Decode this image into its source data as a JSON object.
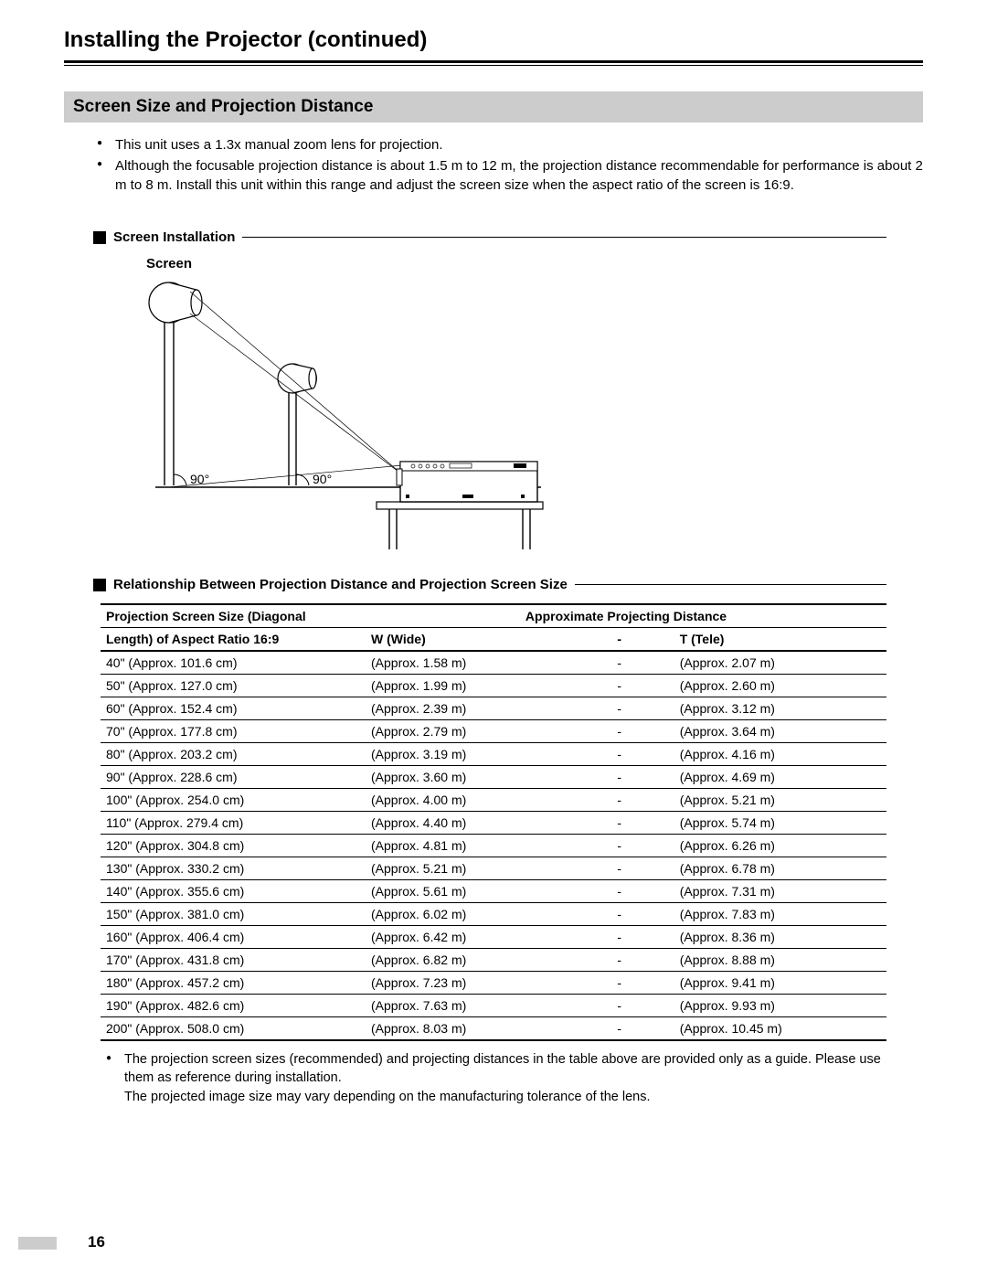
{
  "page": {
    "title": "Installing the Projector (continued)",
    "number": "16"
  },
  "section": {
    "heading": "Screen Size and Projection Distance",
    "bullets": [
      "This unit uses a 1.3x manual zoom lens for projection.",
      "Although the focusable projection distance is about 1.5 m to 12 m, the projection distance recommendable for performance is about 2 m to 8 m. Install this unit within this range and adjust the screen size when the aspect ratio of the screen is 16:9."
    ]
  },
  "diagram": {
    "subheading": "Screen Installation",
    "screen_label": "Screen",
    "angle_left": "90°",
    "angle_right": "90°",
    "line_color": "#000000",
    "fill_color": "#ffffff"
  },
  "table_section": {
    "subheading": "Relationship Between Projection Distance and Projection Screen Size",
    "header_size_l1": "Projection Screen Size (Diagonal",
    "header_size_l2": "Length) of Aspect Ratio 16:9",
    "header_approx": "Approximate Projecting Distance",
    "header_wide": "W (Wide)",
    "header_dash": "-",
    "header_tele": "T (Tele)",
    "rows": [
      {
        "size": "40\" (Approx. 101.6 cm)",
        "wide": "(Approx. 1.58 m)",
        "tele": "(Approx. 2.07 m)"
      },
      {
        "size": "50\" (Approx. 127.0 cm)",
        "wide": "(Approx. 1.99 m)",
        "tele": "(Approx. 2.60 m)"
      },
      {
        "size": "60\" (Approx. 152.4 cm)",
        "wide": "(Approx. 2.39 m)",
        "tele": "(Approx. 3.12 m)"
      },
      {
        "size": "70\" (Approx. 177.8 cm)",
        "wide": "(Approx. 2.79 m)",
        "tele": "(Approx. 3.64 m)"
      },
      {
        "size": "80\" (Approx. 203.2 cm)",
        "wide": "(Approx. 3.19 m)",
        "tele": "(Approx. 4.16 m)"
      },
      {
        "size": "90\" (Approx. 228.6 cm)",
        "wide": "(Approx. 3.60 m)",
        "tele": "(Approx. 4.69 m)"
      },
      {
        "size": "100\" (Approx. 254.0 cm)",
        "wide": "(Approx. 4.00 m)",
        "tele": "(Approx. 5.21 m)"
      },
      {
        "size": "110\" (Approx. 279.4 cm)",
        "wide": "(Approx. 4.40 m)",
        "tele": "(Approx. 5.74 m)"
      },
      {
        "size": "120\" (Approx. 304.8 cm)",
        "wide": "(Approx. 4.81 m)",
        "tele": "(Approx. 6.26 m)"
      },
      {
        "size": "130\" (Approx. 330.2 cm)",
        "wide": "(Approx. 5.21 m)",
        "tele": "(Approx. 6.78 m)"
      },
      {
        "size": "140\" (Approx. 355.6 cm)",
        "wide": "(Approx. 5.61 m)",
        "tele": "(Approx. 7.31 m)"
      },
      {
        "size": "150\" (Approx. 381.0 cm)",
        "wide": "(Approx. 6.02 m)",
        "tele": "(Approx. 7.83 m)"
      },
      {
        "size": "160\" (Approx. 406.4 cm)",
        "wide": "(Approx. 6.42 m)",
        "tele": "(Approx. 8.36 m)"
      },
      {
        "size": "170\" (Approx. 431.8 cm)",
        "wide": "(Approx. 6.82 m)",
        "tele": "(Approx. 8.88 m)"
      },
      {
        "size": "180\" (Approx. 457.2 cm)",
        "wide": "(Approx. 7.23 m)",
        "tele": "(Approx. 9.41 m)"
      },
      {
        "size": "190\" (Approx. 482.6 cm)",
        "wide": "(Approx. 7.63 m)",
        "tele": "(Approx. 9.93 m)"
      },
      {
        "size": "200\" (Approx. 508.0 cm)",
        "wide": "(Approx. 8.03 m)",
        "tele": "(Approx. 10.45 m)"
      }
    ]
  },
  "notes": {
    "n1": "The projection screen sizes (recommended) and projecting distances in the table above are provided only as a guide. Please use them as reference during installation.",
    "n2": "The projected image size may vary depending on the manufacturing tolerance of the lens."
  }
}
